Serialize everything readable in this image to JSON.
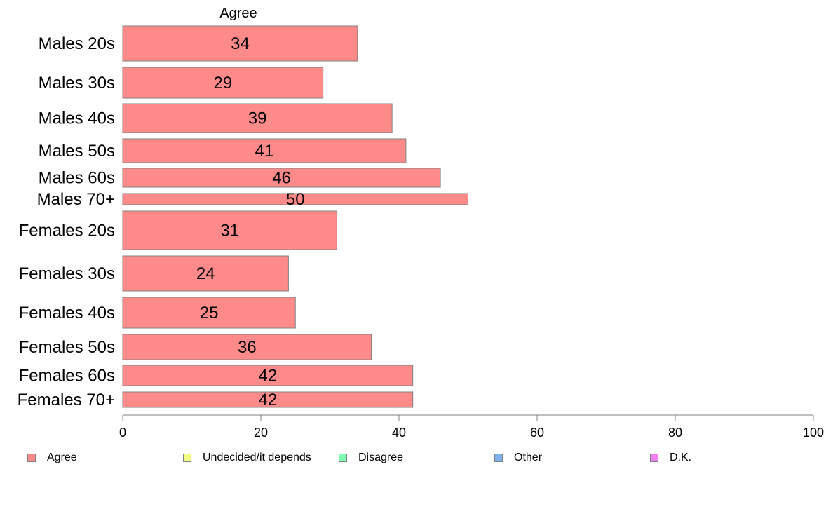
{
  "chart_data": {
    "type": "bar",
    "orientation": "horizontal",
    "series_title": "Agree",
    "categories": [
      "Males 20s",
      "Males 30s",
      "Males 40s",
      "Males 50s",
      "Males 60s",
      "Males 70+",
      "Females 20s",
      "Females 30s",
      "Females 40s",
      "Females 50s",
      "Females 60s",
      "Females 70+"
    ],
    "series": [
      {
        "name": "Agree",
        "values": [
          34,
          29,
          39,
          41,
          46,
          50,
          31,
          24,
          25,
          36,
          42,
          42
        ]
      }
    ],
    "xlim": [
      0,
      100
    ],
    "xticks": [
      0,
      20,
      40,
      60,
      80,
      100
    ],
    "grid": false,
    "legend": {
      "placement": "bottom",
      "items": [
        {
          "label": "Agree",
          "color": "#ff8a8a"
        },
        {
          "label": "Undecided/it depends",
          "color": "#f0ff80"
        },
        {
          "label": "Disagree",
          "color": "#80ffb0"
        },
        {
          "label": "Other",
          "color": "#80b0f0"
        },
        {
          "label": "D.K.",
          "color": "#f080f0"
        }
      ]
    },
    "colors": {
      "bar": "#ff8a8a",
      "bar_border": "#808080",
      "axis": "#808080"
    }
  }
}
